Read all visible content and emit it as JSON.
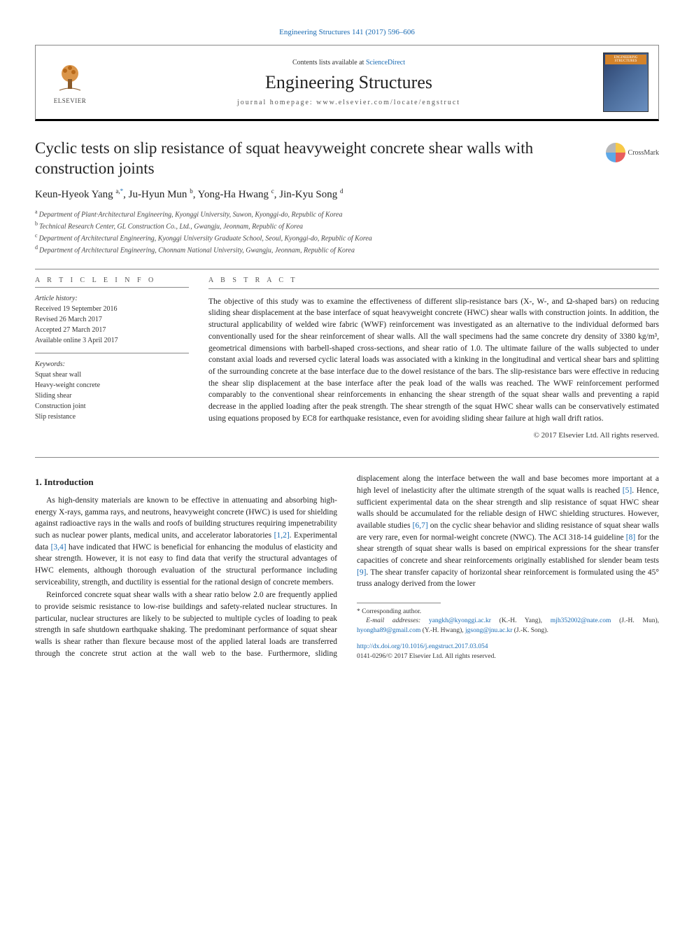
{
  "topCitation": "Engineering Structures 141 (2017) 596–606",
  "header": {
    "contentsPrefix": "Contents lists available at ",
    "contentsLink": "ScienceDirect",
    "journal": "Engineering Structures",
    "homepagePrefix": "journal homepage: ",
    "homepage": "www.elsevier.com/locate/engstruct",
    "elsevier": "ELSEVIER",
    "coverLabel": "ENGINEERING STRUCTURES"
  },
  "title": "Cyclic tests on slip resistance of squat heavyweight concrete shear walls with construction joints",
  "crossmark": "CrossMark",
  "authors": [
    {
      "name": "Keun-Hyeok Yang",
      "sup": "a,",
      "ast": "*"
    },
    {
      "name": "Ju-Hyun Mun",
      "sup": "b"
    },
    {
      "name": "Yong-Ha Hwang",
      "sup": "c"
    },
    {
      "name": "Jin-Kyu Song",
      "sup": "d"
    }
  ],
  "affiliations": [
    {
      "sup": "a",
      "text": "Department of Plant·Architectural Engineering, Kyonggi University, Suwon, Kyonggi-do, Republic of Korea"
    },
    {
      "sup": "b",
      "text": "Technical Research Center, GL Construction Co., Ltd., Gwangju, Jeonnam, Republic of Korea"
    },
    {
      "sup": "c",
      "text": "Department of Architectural Engineering, Kyonggi University Graduate School, Seoul, Kyonggi-do, Republic of Korea"
    },
    {
      "sup": "d",
      "text": "Department of Architectural Engineering, Chonnam National University, Gwangju, Jeonnam, Republic of Korea"
    }
  ],
  "info": {
    "heading": "A R T I C L E   I N F O",
    "historyHead": "Article history:",
    "history": [
      "Received 19 September 2016",
      "Revised 26 March 2017",
      "Accepted 27 March 2017",
      "Available online 3 April 2017"
    ],
    "keywordsHead": "Keywords:",
    "keywords": [
      "Squat shear wall",
      "Heavy-weight concrete",
      "Sliding shear",
      "Construction joint",
      "Slip resistance"
    ]
  },
  "abstract": {
    "heading": "A B S T R A C T",
    "text": "The objective of this study was to examine the effectiveness of different slip-resistance bars (X-, W-, and Ω-shaped bars) on reducing sliding shear displacement at the base interface of squat heavyweight concrete (HWC) shear walls with construction joints. In addition, the structural applicability of welded wire fabric (WWF) reinforcement was investigated as an alternative to the individual deformed bars conventionally used for the shear reinforcement of shear walls. All the wall specimens had the same concrete dry density of 3380 kg/m³, geometrical dimensions with barbell-shaped cross-sections, and shear ratio of 1.0. The ultimate failure of the walls subjected to under constant axial loads and reversed cyclic lateral loads was associated with a kinking in the longitudinal and vertical shear bars and splitting of the surrounding concrete at the base interface due to the dowel resistance of the bars. The slip-resistance bars were effective in reducing the shear slip displacement at the base interface after the peak load of the walls was reached. The WWF reinforcement performed comparably to the conventional shear reinforcements in enhancing the shear strength of the squat shear walls and preventing a rapid decrease in the applied loading after the peak strength. The shear strength of the squat HWC shear walls can be conservatively estimated using equations proposed by EC8 for earthquake resistance, even for avoiding sliding shear failure at high wall drift ratios.",
    "copyright": "© 2017 Elsevier Ltd. All rights reserved."
  },
  "section1": {
    "heading": "1. Introduction",
    "paras": [
      {
        "html": "As high-density materials are known to be effective in attenuating and absorbing high-energy X-rays, gamma rays, and neutrons, heavyweight concrete (HWC) is used for shielding against radioactive rays in the walls and roofs of building structures requiring impenetrability such as nuclear power plants, medical units, and accelerator laboratories <span class='cite'>[1,2]</span>. Experimental data <span class='cite'>[3,4]</span> have indicated that HWC is beneficial for enhancing the modulus of elasticity and shear strength. However, it is not easy to find data that verify the structural advantages of HWC elements, although thorough evaluation of the structural performance including serviceability, strength, and ductility is essential for the rational design of concrete members."
      },
      {
        "html": "Reinforced concrete squat shear walls with a shear ratio below 2.0 are frequently applied to provide seismic resistance to low-rise buildings and safety-related nuclear structures. In particular, nuclear structures are likely to be subjected to multiple cycles of loading to peak strength in safe shutdown earthquake shaking. The predominant performance of squat shear walls is shear rather than flexure because most of the applied lateral loads are transferred through the concrete strut action at the wall web to the base. Furthermore, sliding displacement along the interface between the wall and base becomes more important at a high level of inelasticity after the ultimate strength of the squat walls is reached <span class='cite'>[5]</span>. Hence, sufficient experimental data on the shear strength and slip resistance of squat HWC shear walls should be accumulated for the reliable design of HWC shielding structures. However, available studies <span class='cite'>[6,7]</span> on the cyclic shear behavior and sliding resistance of squat shear walls are very rare, even for normal-weight concrete (NWC). The ACI 318-14 guideline <span class='cite'>[8]</span> for the shear strength of squat shear walls is based on empirical expressions for the shear transfer capacities of concrete and shear reinforcements originally established for slender beam tests <span class='cite'>[9]</span>. The shear transfer capacity of horizontal shear reinforcement is formulated using the 45° truss analogy derived from the lower"
      }
    ]
  },
  "footnote": {
    "corresponding": "* Corresponding author.",
    "emailsLabel": "E-mail addresses: ",
    "emails": [
      {
        "addr": "yangkh@kyonggi.ac.kr",
        "who": "(K.-H. Yang)"
      },
      {
        "addr": "mjh352002@nate.com",
        "who": "(J.-H. Mun)"
      },
      {
        "addr": "hyongha89@gmail.com",
        "who": "(Y.-H. Hwang)"
      },
      {
        "addr": "jgsong@jnu.ac.kr",
        "who": "(J.-K. Song)"
      }
    ]
  },
  "footer": {
    "doi": "http://dx.doi.org/10.1016/j.engstruct.2017.03.054",
    "issn": "0141-0296/© 2017 Elsevier Ltd. All rights reserved."
  },
  "colors": {
    "link": "#1a6bb3",
    "text": "#222222",
    "rule": "#888888",
    "coverOrange": "#d4832a"
  }
}
